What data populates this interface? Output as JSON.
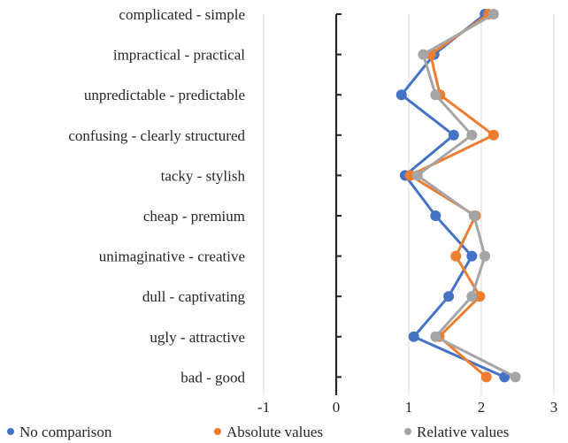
{
  "chart_data": {
    "type": "line",
    "orientation": "horizontal",
    "categories": [
      "complicated - simple",
      "impractical - practical",
      "unpredictable - predictable",
      "confusing - clearly structured",
      "tacky - stylish",
      "cheap - premium",
      "unimaginative - creative",
      "dull - captivating",
      "ugly - attractive",
      "bad - good"
    ],
    "series": [
      {
        "name": "No comparison",
        "color": "#4472c4",
        "values": [
          2.05,
          1.35,
          0.9,
          1.62,
          0.95,
          1.37,
          1.87,
          1.55,
          1.07,
          2.32
        ]
      },
      {
        "name": "Absolute values",
        "color": "#ed7d31",
        "values": [
          2.1,
          1.3,
          1.43,
          2.17,
          1.02,
          1.92,
          1.65,
          1.98,
          1.42,
          2.07
        ]
      },
      {
        "name": "Relative values",
        "color": "#a5a5a5",
        "values": [
          2.17,
          1.2,
          1.37,
          1.87,
          1.12,
          1.9,
          2.05,
          1.87,
          1.37,
          2.47
        ]
      }
    ],
    "xlim": [
      -1,
      3
    ],
    "xticks": [
      "-1",
      "0",
      "1",
      "2",
      "3"
    ],
    "grid": "vertical",
    "legend_position": "bottom"
  }
}
